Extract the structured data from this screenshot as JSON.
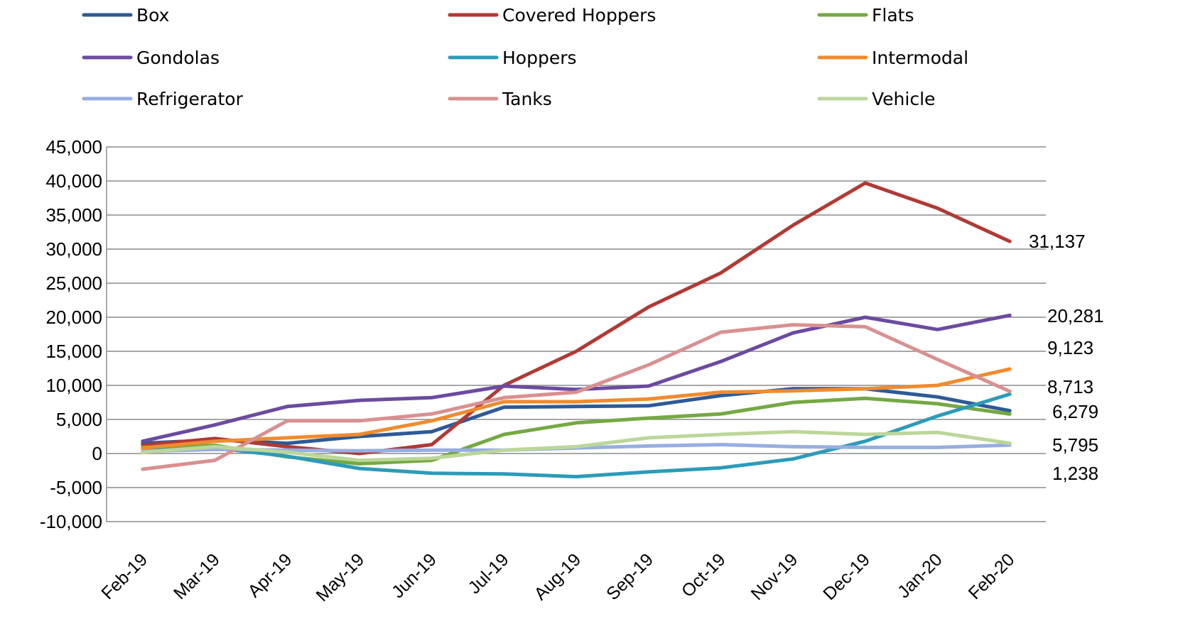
{
  "chart_data": {
    "type": "line",
    "title": "",
    "xlabel": "",
    "ylabel": "",
    "categories": [
      "Feb-19",
      "Mar-19",
      "Apr-19",
      "May-19",
      "Jun-19",
      "Jul-19",
      "Aug-19",
      "Sep-19",
      "Oct-19",
      "Nov-19",
      "Dec-19",
      "Jan-20",
      "Feb-20"
    ],
    "ylim": [
      -10000,
      45000
    ],
    "yticks": [
      45000,
      40000,
      35000,
      30000,
      25000,
      20000,
      15000,
      10000,
      5000,
      0,
      -5000,
      -10000
    ],
    "ytick_labels": [
      "45,000",
      "40,000",
      "35,000",
      "30,000",
      "25,000",
      "20,000",
      "15,000",
      "10,000",
      "5,000",
      "0",
      "-5,000",
      "-10,000"
    ],
    "grid": true,
    "legend_placement": "top",
    "series": [
      {
        "name": "Box",
        "color": "#2e5a96",
        "values": [
          1500,
          2000,
          1500,
          2500,
          3200,
          6800,
          6900,
          7000,
          8500,
          9500,
          9500,
          8300,
          6279
        ]
      },
      {
        "name": "Covered Hoppers",
        "color": "#b03a35",
        "values": [
          1200,
          2200,
          1000,
          0,
          1300,
          10000,
          15000,
          21500,
          26500,
          33500,
          39700,
          36000,
          31137
        ]
      },
      {
        "name": "Flats",
        "color": "#75a843",
        "values": [
          900,
          1200,
          -500,
          -1500,
          -1000,
          2800,
          4500,
          5200,
          5800,
          7500,
          8100,
          7300,
          5795
        ]
      },
      {
        "name": "Gondolas",
        "color": "#6b4ba0",
        "values": [
          1800,
          4200,
          6900,
          7800,
          8200,
          9900,
          9400,
          9900,
          13500,
          17700,
          20000,
          18200,
          20281
        ]
      },
      {
        "name": "Hoppers",
        "color": "#2c9bb8",
        "values": [
          400,
          800,
          -400,
          -2200,
          -2900,
          -3000,
          -3400,
          -2700,
          -2100,
          -800,
          1800,
          5500,
          8713
        ]
      },
      {
        "name": "Intermodal",
        "color": "#f08b2e",
        "values": [
          800,
          1800,
          2300,
          2800,
          4800,
          7600,
          7600,
          8000,
          9000,
          9200,
          9500,
          10000,
          12400
        ]
      },
      {
        "name": "Refrigerator",
        "color": "#97aee2",
        "values": [
          300,
          600,
          500,
          400,
          500,
          500,
          800,
          1100,
          1300,
          1000,
          900,
          900,
          1238
        ]
      },
      {
        "name": "Tanks",
        "color": "#d99090",
        "values": [
          -2300,
          -1000,
          4800,
          4800,
          5800,
          8200,
          9000,
          13000,
          17800,
          18900,
          18600,
          13800,
          9123
        ]
      },
      {
        "name": "Vehicle",
        "color": "#bcd69a",
        "values": [
          200,
          1000,
          200,
          -1000,
          -700,
          500,
          1000,
          2300,
          2800,
          3200,
          2800,
          3100,
          1500
        ]
      }
    ],
    "end_labels": [
      "31,137",
      "20,281",
      "9,123",
      "8,713",
      "6,279",
      "5,795",
      "1,238"
    ]
  }
}
